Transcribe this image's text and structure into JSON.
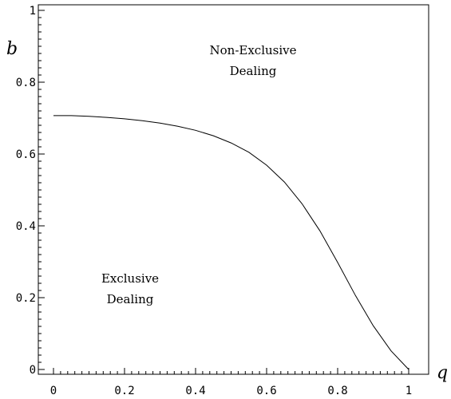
{
  "chart_data": {
    "type": "line",
    "title": "",
    "xlabel": "q",
    "ylabel": "b",
    "xlim": [
      0,
      1
    ],
    "ylim": [
      0,
      1
    ],
    "grid": false,
    "x_ticks": [
      {
        "value": 0,
        "label": "0"
      },
      {
        "value": 0.2,
        "label": "0.2"
      },
      {
        "value": 0.4,
        "label": "0.4"
      },
      {
        "value": 0.6,
        "label": "0.6"
      },
      {
        "value": 0.8,
        "label": "0.8"
      },
      {
        "value": 1,
        "label": "1"
      }
    ],
    "y_ticks": [
      {
        "value": 0,
        "label": "0"
      },
      {
        "value": 0.2,
        "label": "0.2"
      },
      {
        "value": 0.4,
        "label": "0.4"
      },
      {
        "value": 0.6,
        "label": "0.6"
      },
      {
        "value": 0.8,
        "label": "0.8"
      },
      {
        "value": 1,
        "label": "1"
      }
    ],
    "series": [
      {
        "x": [
          0.0,
          0.05,
          0.1,
          0.15,
          0.2,
          0.25,
          0.3,
          0.35,
          0.4,
          0.45,
          0.5,
          0.55,
          0.6,
          0.65,
          0.7,
          0.75,
          0.8,
          0.85,
          0.9,
          0.95,
          1.0
        ],
        "y": [
          0.707,
          0.707,
          0.705,
          0.702,
          0.698,
          0.693,
          0.686,
          0.677,
          0.666,
          0.651,
          0.631,
          0.605,
          0.569,
          0.522,
          0.461,
          0.386,
          0.298,
          0.206,
          0.122,
          0.052,
          0.0
        ]
      }
    ],
    "annotations": {
      "upper_region": [
        "Non-Exclusive",
        "Dealing"
      ],
      "lower_region": [
        "Exclusive",
        "Dealing"
      ]
    }
  }
}
